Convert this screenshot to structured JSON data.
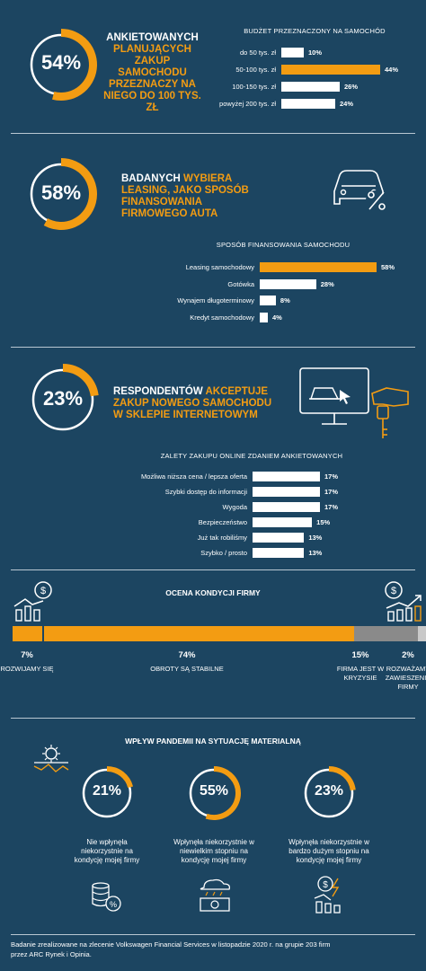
{
  "colors": {
    "background": "#1c4561",
    "accent": "#f39c12",
    "bar_white": "#ffffff",
    "gray": "#8a8a8a",
    "ring_track": "#ffffff"
  },
  "section1": {
    "ring_value": "54%",
    "ring_fraction": 0.54,
    "heading_white": "ANKIETOWANYCH",
    "heading_orange": "PLANUJĄCYCH ZAKUP SAMOCHODU PRZEZNACZY NA NIEGO DO 100 TYS. ZŁ",
    "chart_title": "BUDŻET PRZEZNACZONY NA SAMOCHÓD"
  },
  "section2": {
    "ring_value": "58%",
    "ring_fraction": 0.58,
    "heading_white": "BADANYCH",
    "heading_orange": "WYBIERA LEASING, JAKO SPOSÓB FINANSOWANIA FIRMOWEGO AUTA",
    "chart_title": "SPOSÓB FINANSOWANIA SAMOCHODU"
  },
  "section3": {
    "ring_value": "23%",
    "ring_fraction": 0.23,
    "heading_white": "RESPONDENTÓW",
    "heading_orange": "AKCEPTUJE ZAKUP NOWEGO SAMOCHODU W SKLEPIE INTERNETOWYM",
    "chart_title": "ZALETY ZAKUPU ONLINE ZDANIEM ANKIETOWANYCH"
  },
  "section4": {
    "title": "OCENA KONDYCJI FIRMY"
  },
  "section5": {
    "title": "WPŁYW PANDEMII NA SYTUACJĘ MATERIALNĄ",
    "rings": [
      {
        "value": "21%",
        "fraction": 0.21,
        "label": "Nie wpłynęła niekorzystnie na kondycję mojej firmy"
      },
      {
        "value": "55%",
        "fraction": 0.55,
        "label": "Wpłynęła niekorzystnie w niewielkim stopniu na kondycję mojej firmy"
      },
      {
        "value": "23%",
        "fraction": 0.23,
        "label": "Wpłynęła niekorzystnie w bardzo dużym stopniu na kondycję mojej firmy"
      }
    ]
  },
  "footer": {
    "line1": "Badanie zrealizowane na zlecenie Volkswagen Financial Services w listopadzie 2020 r. na grupie 203 firm",
    "line2": "przez ARC Rynek i Opinia."
  },
  "chart_data": [
    {
      "type": "bar",
      "title": "BUDŻET PRZEZNACZONY NA SAMOCHÓD",
      "categories": [
        "do 50 tys. zł",
        "50-100 tys. zł",
        "100-150  tys. zł",
        "powyżej 200 tys. zł"
      ],
      "values": [
        10,
        44,
        26,
        24
      ],
      "value_labels": [
        "10%",
        "44%",
        "26%",
        "24%"
      ],
      "highlight": [
        false,
        true,
        false,
        false
      ],
      "xlim": [
        0,
        44
      ]
    },
    {
      "type": "bar",
      "title": "SPOSÓB FINANSOWANIA SAMOCHODU",
      "categories": [
        "Leasing samochodowy",
        "Gotówka",
        "Wynajem długoterminowy",
        "Kredyt samochodowy"
      ],
      "values": [
        58,
        28,
        8,
        4
      ],
      "value_labels": [
        "58%",
        "28%",
        "8%",
        "4%"
      ],
      "highlight": [
        true,
        false,
        false,
        false
      ],
      "xlim": [
        0,
        58
      ]
    },
    {
      "type": "bar",
      "title": "ZALETY ZAKUPU ONLINE ZDANIEM ANKIETOWANYCH",
      "categories": [
        "Możliwa niższa cena / lepsza oferta",
        "Szybki dostęp do informacji",
        "Wygoda",
        "Bezpieczeństwo",
        "Już tak robiliśmy",
        "Szybko / prosto"
      ],
      "values": [
        17,
        17,
        17,
        15,
        13,
        13
      ],
      "value_labels": [
        "17%",
        "17%",
        "17%",
        "15%",
        "13%",
        "13%"
      ],
      "highlight": [
        false,
        false,
        false,
        false,
        false,
        false
      ],
      "xlim": [
        0,
        17
      ]
    },
    {
      "type": "bar",
      "title": "OCENA KONDYCJI FIRMY",
      "stacked": true,
      "categories": [
        "ROZWIJAMY SIĘ",
        "OBROTY SĄ STABILNE",
        "FIRMA JEST W KRYZYSIE",
        "ROZWAŻAMY ZAWIESZENIE FIRMY"
      ],
      "values": [
        7,
        74,
        15,
        2
      ],
      "value_labels": [
        "7%",
        "74%",
        "15%",
        "2%"
      ],
      "segment_colors": [
        "#f39c12",
        "#f39c12",
        "#8a8a8a",
        "#c9c9c9"
      ]
    }
  ]
}
